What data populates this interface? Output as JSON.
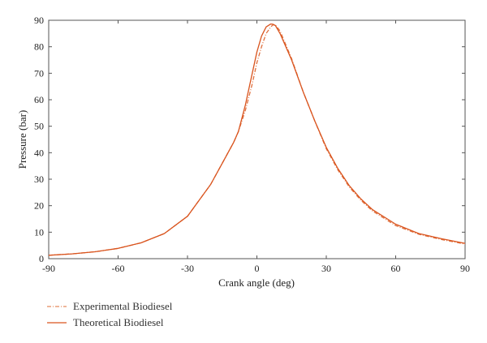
{
  "chart_data": {
    "type": "line",
    "title": "",
    "xlabel": "Crank angle (deg)",
    "ylabel": "Pressure (bar)",
    "xlim": [
      -90,
      90
    ],
    "ylim": [
      0,
      90
    ],
    "xticks": [
      -90,
      -60,
      -30,
      0,
      30,
      60,
      90
    ],
    "yticks": [
      0,
      10,
      20,
      30,
      40,
      50,
      60,
      70,
      80,
      90
    ],
    "grid": false,
    "legend_position": "bottom-left",
    "colors": {
      "line": "#d9541e",
      "axis": "#555555"
    },
    "series": [
      {
        "name": "Experimental Biodiesel",
        "style": "dash-dot",
        "x": [
          -90,
          -80,
          -70,
          -60,
          -50,
          -40,
          -30,
          -20,
          -15,
          -10,
          -8,
          -5,
          -2,
          0,
          2,
          4,
          6,
          7,
          8,
          10,
          15,
          20,
          25,
          30,
          35,
          40,
          45,
          50,
          60,
          70,
          80,
          90
        ],
        "y": [
          1.3,
          1.8,
          2.6,
          3.9,
          6,
          9.5,
          16,
          28,
          36,
          44,
          48,
          56,
          66,
          74,
          80,
          85,
          87.5,
          88.3,
          88.2,
          86,
          75.5,
          63,
          52,
          41.5,
          33.5,
          27,
          22,
          18,
          12.5,
          9.2,
          7.2,
          5.5
        ]
      },
      {
        "name": "Theoretical Biodiesel",
        "style": "solid",
        "x": [
          -90,
          -80,
          -70,
          -60,
          -50,
          -40,
          -30,
          -20,
          -15,
          -10,
          -8,
          -5,
          -2,
          0,
          2,
          4,
          6,
          7,
          8,
          10,
          15,
          20,
          25,
          30,
          35,
          40,
          45,
          50,
          60,
          70,
          80,
          90
        ],
        "y": [
          1.3,
          1.8,
          2.6,
          3.9,
          6,
          9.5,
          16,
          28,
          36,
          44,
          48,
          58,
          70,
          78,
          84,
          87.5,
          88.6,
          88.5,
          88,
          85,
          75,
          63,
          52,
          42,
          34,
          27.5,
          22.5,
          18.5,
          13,
          9.5,
          7.5,
          5.8
        ]
      }
    ]
  }
}
